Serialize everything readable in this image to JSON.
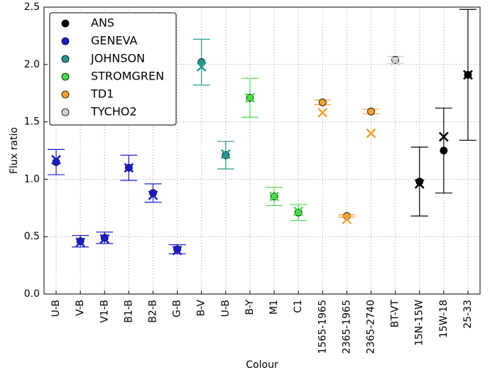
{
  "chart_data": {
    "type": "errorbar",
    "y_label": "Flux ratio",
    "x_label": "Colour",
    "categories": [
      "U-B",
      "V-B",
      "V1-B",
      "B1-B",
      "B2-B",
      "G-B",
      "B-V",
      "U-B",
      "B-Y",
      "M1",
      "C1",
      "1565-1965",
      "2365-1965",
      "2365-2740",
      "BT-VT",
      "15N-15W",
      "15W-18",
      "25-33"
    ],
    "ylim": [
      0,
      2.5
    ],
    "yticks": [
      {
        "value": 0,
        "label": "0.0"
      },
      0.5,
      {
        "value": 1,
        "label": "1.0"
      },
      1.5,
      {
        "value": 2,
        "label": "2.0"
      },
      2.5
    ],
    "grid": true,
    "legend": "upper left",
    "series": [
      {
        "name": "ANS",
        "color": "#000000",
        "values": [
          null,
          null,
          null,
          null,
          null,
          null,
          null,
          null,
          null,
          null,
          null,
          null,
          null,
          null,
          null,
          0.98,
          1.25,
          1.91
        ],
        "errors": [
          null,
          null,
          null,
          null,
          null,
          null,
          null,
          null,
          null,
          null,
          null,
          null,
          null,
          null,
          null,
          0.3,
          0.37,
          0.57
        ],
        "model": [
          null,
          null,
          null,
          null,
          null,
          null,
          null,
          null,
          null,
          null,
          null,
          null,
          null,
          null,
          null,
          0.96,
          1.37,
          1.91
        ]
      },
      {
        "name": "GENEVA",
        "color": "#1a1acc",
        "values": [
          1.15,
          0.46,
          0.49,
          1.1,
          0.88,
          0.39,
          null,
          null,
          null,
          null,
          null,
          null,
          null,
          null,
          null,
          null,
          null,
          null
        ],
        "errors": [
          0.11,
          0.05,
          0.05,
          0.11,
          0.08,
          0.04,
          null,
          null,
          null,
          null,
          null,
          null,
          null,
          null,
          null,
          null,
          null,
          null
        ],
        "model": [
          1.17,
          0.45,
          0.48,
          1.1,
          0.86,
          0.38,
          null,
          null,
          null,
          null,
          null,
          null,
          null,
          null,
          null,
          null,
          null,
          null
        ]
      },
      {
        "name": "JOHNSON",
        "color": "#22998a",
        "values": [
          null,
          null,
          null,
          null,
          null,
          null,
          2.02,
          1.21,
          null,
          null,
          null,
          null,
          null,
          null,
          null,
          null,
          null,
          null
        ],
        "errors": [
          null,
          null,
          null,
          null,
          null,
          null,
          0.2,
          0.12,
          null,
          null,
          null,
          null,
          null,
          null,
          null,
          null,
          null,
          null
        ],
        "model": [
          null,
          null,
          null,
          null,
          null,
          null,
          1.98,
          1.22,
          null,
          null,
          null,
          null,
          null,
          null,
          null,
          null,
          null,
          null
        ]
      },
      {
        "name": "STROMGREN",
        "color": "#44dd44",
        "values": [
          null,
          null,
          null,
          null,
          null,
          null,
          null,
          null,
          1.71,
          0.85,
          0.71,
          null,
          null,
          null,
          null,
          null,
          null,
          null
        ],
        "errors": [
          null,
          null,
          null,
          null,
          null,
          null,
          null,
          null,
          0.17,
          0.08,
          0.07,
          null,
          null,
          null,
          null,
          null,
          null,
          null
        ],
        "model": [
          null,
          null,
          null,
          null,
          null,
          null,
          null,
          null,
          1.71,
          0.85,
          0.72,
          null,
          null,
          null,
          null,
          null,
          null,
          null
        ]
      },
      {
        "name": "TD1",
        "color": "#f5a030",
        "values": [
          null,
          null,
          null,
          null,
          null,
          null,
          null,
          null,
          null,
          null,
          null,
          1.67,
          0.68,
          1.59,
          null,
          null,
          null,
          null
        ],
        "errors": [
          null,
          null,
          null,
          null,
          null,
          null,
          null,
          null,
          null,
          null,
          null,
          0.02,
          0.01,
          0.02,
          null,
          null,
          null,
          null
        ],
        "model": [
          null,
          null,
          null,
          null,
          null,
          null,
          null,
          null,
          null,
          null,
          null,
          1.58,
          0.65,
          1.4,
          null,
          null,
          null,
          null
        ]
      },
      {
        "name": "TYCHO2",
        "color": "#d0d0d0",
        "values": [
          null,
          null,
          null,
          null,
          null,
          null,
          null,
          null,
          null,
          null,
          null,
          null,
          null,
          null,
          2.04,
          null,
          null,
          null
        ],
        "errors": [
          null,
          null,
          null,
          null,
          null,
          null,
          null,
          null,
          null,
          null,
          null,
          null,
          null,
          null,
          0.03,
          null,
          null,
          null
        ],
        "model": [
          null,
          null,
          null,
          null,
          null,
          null,
          null,
          null,
          null,
          null,
          null,
          null,
          null,
          null,
          2.03,
          null,
          null,
          null
        ]
      }
    ]
  }
}
